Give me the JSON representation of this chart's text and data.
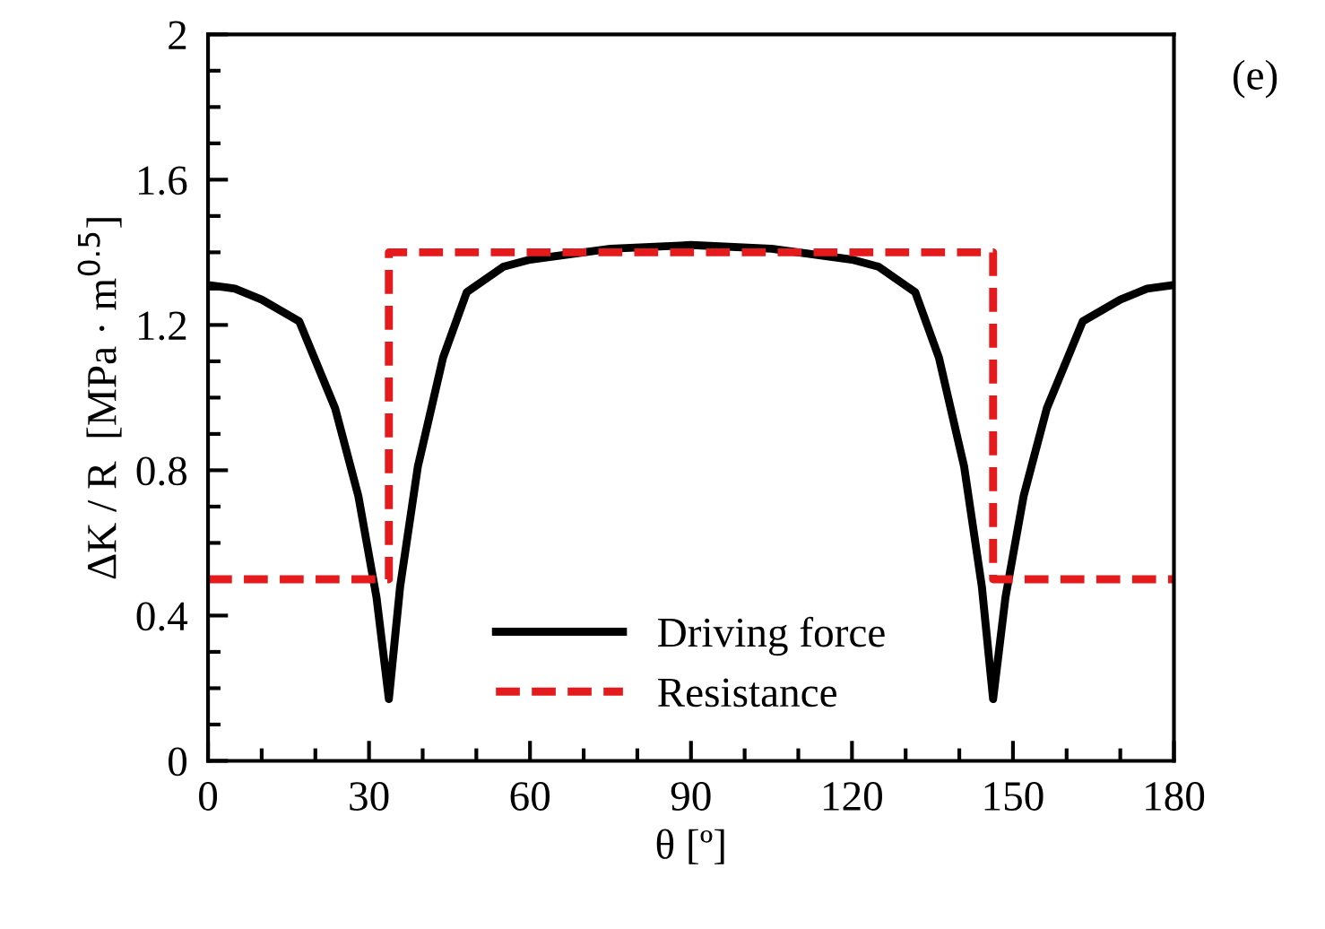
{
  "chart_data": {
    "type": "line",
    "xlabel": "θ [º]",
    "ylabel": "ΔK / R  [MPa · m$^{0.5}$]",
    "annotations": [
      "(e)"
    ],
    "series": [
      {
        "name": "Driving force",
        "color": "#000000",
        "line_style": "solid",
        "x": [
          0,
          5,
          10,
          17,
          23.7,
          28,
          31.4,
          33.7,
          35.8,
          39.1,
          43.8,
          48.2,
          55,
          60,
          75,
          90,
          105,
          120,
          125,
          131.8,
          136.2,
          140.9,
          144.2,
          146.3,
          148.6,
          152,
          156.3,
          163,
          170,
          175,
          180
        ],
        "values": [
          1.31,
          1.3,
          1.27,
          1.21,
          0.97,
          0.73,
          0.45,
          0.17,
          0.48,
          0.81,
          1.11,
          1.29,
          1.36,
          1.38,
          1.41,
          1.42,
          1.41,
          1.38,
          1.36,
          1.29,
          1.11,
          0.81,
          0.48,
          0.17,
          0.45,
          0.73,
          0.97,
          1.21,
          1.27,
          1.3,
          1.31
        ]
      },
      {
        "name": "Resistance",
        "color": "#e41a1c",
        "line_style": "dashed",
        "x": [
          0,
          33.7,
          33.7,
          146.3,
          146.3,
          180
        ],
        "values": [
          0.5,
          0.5,
          1.4,
          1.4,
          0.5,
          0.5
        ]
      }
    ],
    "xlim": [
      0,
      180
    ],
    "ylim": [
      0,
      2
    ],
    "xticks": [
      0,
      {
        "value": 10,
        "label": null
      },
      {
        "value": 20,
        "label": null
      },
      30,
      {
        "value": 40,
        "label": null
      },
      {
        "value": 50,
        "label": null
      },
      60,
      {
        "value": 70,
        "label": null
      },
      {
        "value": 80,
        "label": null
      },
      90,
      {
        "value": 100,
        "label": null
      },
      {
        "value": 110,
        "label": null
      },
      120,
      {
        "value": 130,
        "label": null
      },
      {
        "value": 140,
        "label": null
      },
      150,
      {
        "value": 160,
        "label": null
      },
      {
        "value": 170,
        "label": null
      },
      180
    ],
    "yticks": [
      0,
      {
        "value": 0.1,
        "label": null
      },
      {
        "value": 0.2,
        "label": null
      },
      {
        "value": 0.3,
        "label": null
      },
      0.4,
      {
        "value": 0.5,
        "label": null
      },
      {
        "value": 0.6,
        "label": null
      },
      {
        "value": 0.7,
        "label": null
      },
      0.8,
      {
        "value": 0.9,
        "label": null
      },
      {
        "value": 1.0,
        "label": null
      },
      {
        "value": 1.1,
        "label": null
      },
      1.2,
      {
        "value": 1.3,
        "label": null
      },
      {
        "value": 1.4,
        "label": null
      },
      {
        "value": 1.5,
        "label": null
      },
      1.6,
      {
        "value": 1.7,
        "label": null
      },
      {
        "value": 1.8,
        "label": null
      },
      {
        "value": 1.9,
        "label": null
      },
      2
    ],
    "grid": false,
    "legend": "bottom",
    "marker": "none"
  }
}
